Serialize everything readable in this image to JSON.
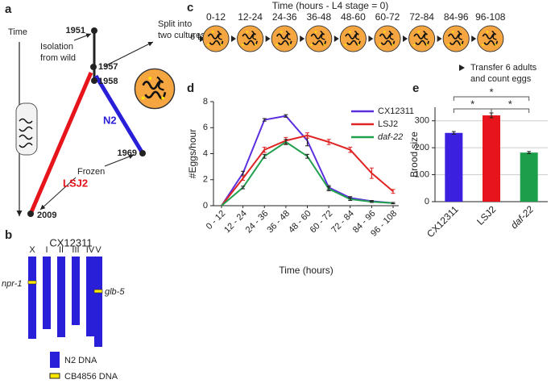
{
  "panel_a": {
    "label": "a",
    "time_label": "Time",
    "years": [
      "1951",
      "1957",
      "1958",
      "1969",
      "2009"
    ],
    "isolation": [
      "Isolation",
      "from wild"
    ],
    "split": [
      "Split into",
      "two cultures"
    ],
    "frozen": "Frozen",
    "strains": [
      "LSJ2",
      "N2"
    ]
  },
  "panel_b": {
    "label": "b",
    "strain": "CX12311",
    "chromosomes": [
      "X",
      "I",
      "II",
      "III",
      "IV",
      "V"
    ],
    "genes": [
      "npr-1",
      "glb-5"
    ],
    "legend": [
      "N2 DNA",
      "CB4856 DNA"
    ]
  },
  "panel_c": {
    "label": "c",
    "title": "Time (hours - L4 stage = 0)",
    "start": "6 L4s",
    "timepoints": [
      "0-12",
      "12-24",
      "24-36",
      "36-48",
      "48-60",
      "60-72",
      "72-84",
      "84-96",
      "96-108"
    ],
    "transfer": [
      "Transfer 6 adults",
      "and count eggs"
    ]
  },
  "chart_data": [
    {
      "type": "line",
      "label": "d",
      "xlabel": "Time (hours)",
      "ylabel": "#Eggs/hour",
      "categories": [
        "0 - 12",
        "12 - 24",
        "24 - 36",
        "36 - 48",
        "48 - 60",
        "60 - 72",
        "72 - 84",
        "84 - 96",
        "96 - 108"
      ],
      "series": [
        {
          "name": "CX12311",
          "color": "#5b2fe0",
          "values": [
            0,
            2.5,
            6.6,
            6.9,
            5.0,
            1.4,
            0.6,
            0.35,
            0.2
          ],
          "errors": [
            0,
            0.15,
            0.1,
            0.1,
            0.4,
            0.15,
            0.1,
            0.05,
            0.05
          ]
        },
        {
          "name": "LSJ2",
          "color": "#e02424",
          "values": [
            0,
            2.1,
            4.3,
            5.0,
            5.4,
            4.9,
            4.3,
            2.5,
            1.1
          ],
          "errors": [
            0,
            0.15,
            0.2,
            0.25,
            0.2,
            0.2,
            0.2,
            0.4,
            0.15
          ]
        },
        {
          "name": "daf-22",
          "color": "#22a04e",
          "values": [
            0,
            1.4,
            3.8,
            4.9,
            3.8,
            1.3,
            0.5,
            0.3,
            0.2
          ],
          "errors": [
            0,
            0.1,
            0.15,
            0.2,
            0.15,
            0.15,
            0.1,
            0.05,
            0.05
          ]
        }
      ],
      "ylim": [
        0,
        8
      ],
      "yticks": [
        0,
        2,
        4,
        6,
        8
      ]
    },
    {
      "type": "bar",
      "label": "e",
      "ylabel": "Brood size",
      "categories": [
        "CX12311",
        "LSJ2",
        "daf-22"
      ],
      "values": [
        255,
        320,
        182
      ],
      "errors": [
        5,
        9,
        4
      ],
      "colors": [
        "#3b20e0",
        "#e8141c",
        "#1c9e4a"
      ],
      "ylim": [
        0,
        350
      ],
      "yticks": [
        0,
        100,
        200,
        300
      ],
      "grid": true,
      "significance_labels": [
        "*",
        "*",
        "*"
      ]
    }
  ]
}
